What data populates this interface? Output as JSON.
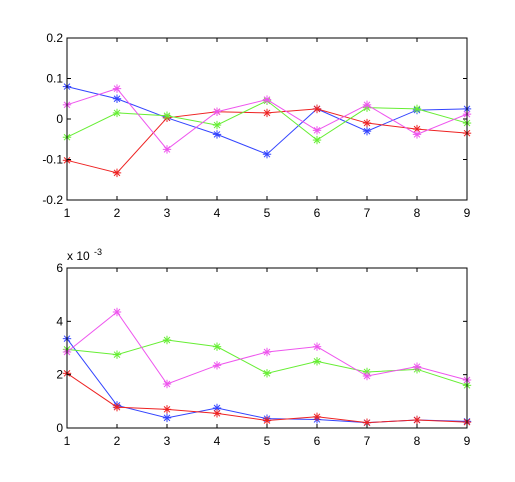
{
  "colors": {
    "series_blue": "#3344ff",
    "series_red": "#ee2222",
    "series_green": "#66ee33",
    "series_magenta": "#ee55ee",
    "axes": "#000000",
    "background": "#ffffff"
  },
  "chart_data": [
    {
      "type": "line",
      "marker": "asterisk",
      "x": [
        1,
        2,
        3,
        4,
        5,
        6,
        7,
        8,
        9
      ],
      "xlim": [
        1,
        9
      ],
      "ylim": [
        -0.2,
        0.2
      ],
      "xticks": [
        "1",
        "2",
        "3",
        "4",
        "5",
        "6",
        "7",
        "8",
        "9"
      ],
      "yticks": [
        "-0.2",
        "-0.1",
        "0",
        "0.1",
        "0.2"
      ],
      "ytick_values": [
        -0.2,
        -0.1,
        0,
        0.1,
        0.2
      ],
      "grid": false,
      "series": [
        {
          "color": "#3344ff",
          "values": [
            0.08,
            0.05,
            0.003,
            -0.038,
            -0.087,
            0.025,
            -0.03,
            0.022,
            0.025
          ]
        },
        {
          "color": "#ee2222",
          "values": [
            -0.102,
            -0.133,
            0.003,
            0.018,
            0.015,
            0.025,
            -0.01,
            -0.025,
            -0.035
          ]
        },
        {
          "color": "#66ee33",
          "values": [
            -0.045,
            0.015,
            0.008,
            -0.015,
            0.045,
            -0.052,
            0.028,
            0.025,
            -0.01
          ]
        },
        {
          "color": "#ee55ee",
          "values": [
            0.035,
            0.075,
            -0.075,
            0.018,
            0.048,
            -0.028,
            0.035,
            -0.038,
            0.012
          ]
        }
      ]
    },
    {
      "type": "line",
      "marker": "asterisk",
      "x": [
        1,
        2,
        3,
        4,
        5,
        6,
        7,
        8,
        9
      ],
      "xlim": [
        1,
        9
      ],
      "ylim": [
        0,
        6
      ],
      "xticks": [
        "1",
        "2",
        "3",
        "4",
        "5",
        "6",
        "7",
        "8",
        "9"
      ],
      "yticks": [
        "0",
        "2",
        "4",
        "6"
      ],
      "ytick_values": [
        0,
        2,
        4,
        6
      ],
      "y_exponent_base": "x 10",
      "y_exponent_power": "-3",
      "grid": false,
      "series": [
        {
          "color": "#3344ff",
          "values": [
            3.35,
            0.85,
            0.38,
            0.75,
            0.35,
            0.32,
            0.2,
            0.3,
            0.25
          ]
        },
        {
          "color": "#ee2222",
          "values": [
            2.05,
            0.78,
            0.7,
            0.55,
            0.28,
            0.42,
            0.2,
            0.3,
            0.22
          ]
        },
        {
          "color": "#66ee33",
          "values": [
            2.95,
            2.75,
            3.3,
            3.05,
            2.05,
            2.5,
            2.1,
            2.2,
            1.6
          ]
        },
        {
          "color": "#ee55ee",
          "values": [
            2.85,
            4.35,
            1.65,
            2.35,
            2.85,
            3.05,
            1.95,
            2.3,
            1.8
          ]
        }
      ]
    }
  ]
}
